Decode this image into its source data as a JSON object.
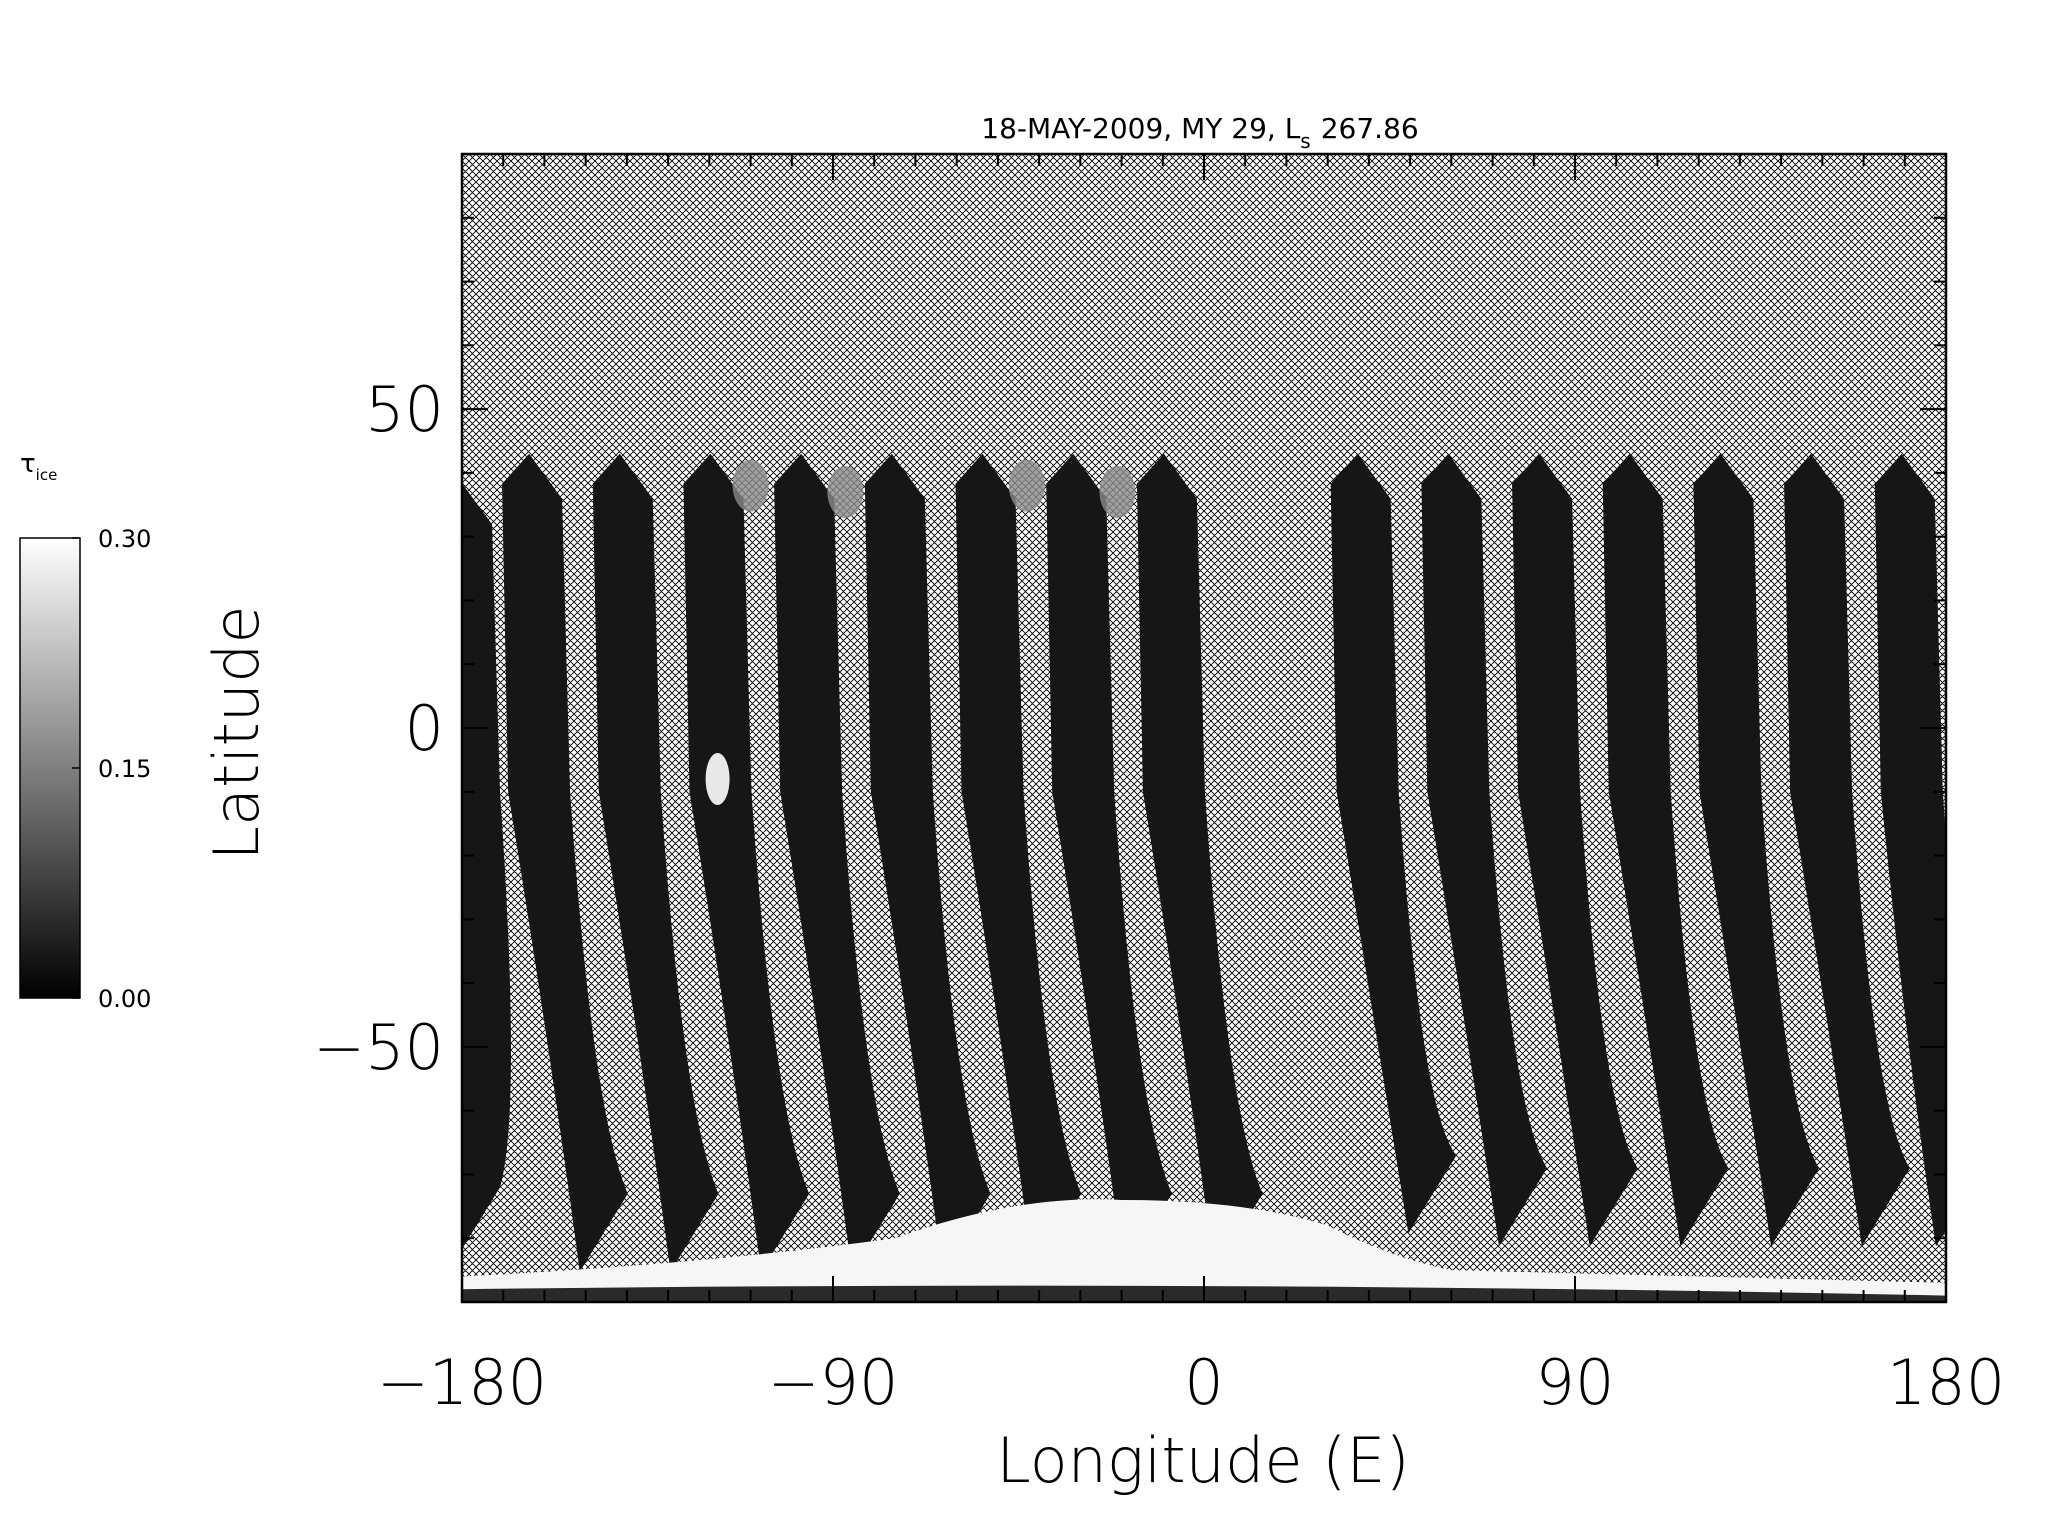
{
  "chart_data": {
    "type": "heatmap",
    "title": "18-MAY-2009, MY 29,  L",
    "title_subscript": "s",
    "title_value": "267.86",
    "xlabel": "Longitude (E)",
    "ylabel": "Latitude",
    "xlim": [
      -180,
      180
    ],
    "ylim": [
      -90,
      90
    ],
    "xticks": [
      -180,
      -90,
      0,
      90,
      180
    ],
    "xtick_labels": [
      "−180",
      "−90",
      "0",
      "90",
      "180"
    ],
    "yticks": [
      -50,
      0,
      50
    ],
    "ytick_labels": [
      "−50",
      "0",
      "50"
    ],
    "missing_data_pattern": "cross-hatch",
    "colorbar": {
      "label_symbol": "τ",
      "label_subscript": "ice",
      "range": [
        0.0,
        0.3
      ],
      "colormap": "grayscale (black to white)",
      "tick_values": [
        0.0,
        0.15,
        0.3
      ],
      "tick_labels": [
        "0.00",
        "0.15",
        "0.30"
      ]
    },
    "swaths": [
      {
        "top_lon": -180,
        "top_lat": 39,
        "bottom_lon": -180,
        "bottom_lat": -83
      },
      {
        "top_lon": -163,
        "top_lat": 43,
        "bottom_lon": -149,
        "bottom_lat": -84
      },
      {
        "top_lon": -141,
        "top_lat": 43,
        "bottom_lon": -127,
        "bottom_lat": -84
      },
      {
        "top_lon": -119,
        "top_lat": 43,
        "bottom_lon": -105,
        "bottom_lat": -84
      },
      {
        "top_lon": -97,
        "top_lat": 43,
        "bottom_lon": -83,
        "bottom_lat": -84
      },
      {
        "top_lon": -75,
        "top_lat": 43,
        "bottom_lon": -61,
        "bottom_lat": -84
      },
      {
        "top_lon": -53,
        "top_lat": 43,
        "bottom_lon": -39,
        "bottom_lat": -84
      },
      {
        "top_lon": -31,
        "top_lat": 43,
        "bottom_lon": -17,
        "bottom_lat": -84
      },
      {
        "top_lon": -9,
        "top_lat": 43,
        "bottom_lon": 5,
        "bottom_lat": -84
      },
      {
        "top_lon": 38,
        "top_lat": 43,
        "bottom_lon": 52,
        "bottom_lat": -78
      },
      {
        "top_lon": 60,
        "top_lat": 43,
        "bottom_lon": 74,
        "bottom_lat": -80
      },
      {
        "top_lon": 82,
        "top_lat": 43,
        "bottom_lon": 96,
        "bottom_lat": -80
      },
      {
        "top_lon": 104,
        "top_lat": 43,
        "bottom_lon": 118,
        "bottom_lat": -80
      },
      {
        "top_lon": 126,
        "top_lat": 43,
        "bottom_lon": 140,
        "bottom_lat": -80
      },
      {
        "top_lon": 148,
        "top_lat": 43,
        "bottom_lon": 162,
        "bottom_lat": -80
      },
      {
        "top_lon": 170,
        "top_lat": 43,
        "bottom_lon": 180,
        "bottom_lat": -80
      }
    ],
    "high_values": [
      {
        "region": "south polar cap",
        "lon_range": [
          -180,
          180
        ],
        "lat_range": [
          -90,
          -74
        ],
        "value": 0.3
      },
      {
        "region": "cloud patch",
        "lon": -118,
        "lat": -8,
        "value": 0.28
      },
      {
        "region": "cloud patches near swath tops",
        "lat": 38,
        "value": 0.22
      }
    ]
  }
}
